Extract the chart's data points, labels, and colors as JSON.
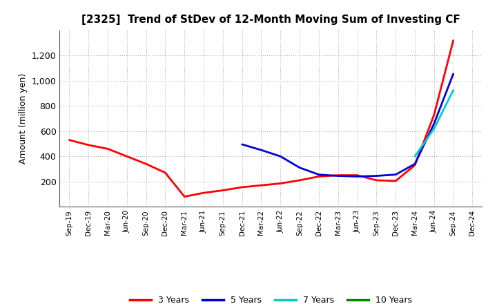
{
  "title": "[2325]  Trend of StDev of 12-Month Moving Sum of Investing CF",
  "ylabel": "Amount (million yen)",
  "background_color": "#ffffff",
  "grid_color": "#aaaaaa",
  "ylim": [
    0,
    1400
  ],
  "yticks": [
    200,
    400,
    600,
    800,
    1000,
    1200
  ],
  "series": {
    "3 Years": {
      "color": "#ff0000",
      "data": [
        [
          "Sep-19",
          530
        ],
        [
          "Dec-19",
          490
        ],
        [
          "Mar-20",
          460
        ],
        [
          "Jun-20",
          400
        ],
        [
          "Sep-20",
          340
        ],
        [
          "Dec-20",
          270
        ],
        [
          "Mar-21",
          80
        ],
        [
          "Jun-21",
          110
        ],
        [
          "Sep-21",
          130
        ],
        [
          "Dec-21",
          155
        ],
        [
          "Mar-22",
          170
        ],
        [
          "Jun-22",
          185
        ],
        [
          "Sep-22",
          210
        ],
        [
          "Dec-22",
          240
        ],
        [
          "Mar-23",
          250
        ],
        [
          "Jun-23",
          250
        ],
        [
          "Sep-23",
          210
        ],
        [
          "Dec-23",
          205
        ],
        [
          "Mar-24",
          330
        ],
        [
          "Jun-24",
          730
        ],
        [
          "Sep-24",
          1320
        ]
      ]
    },
    "5 Years": {
      "color": "#0000dd",
      "data": [
        [
          "Dec-21",
          495
        ],
        [
          "Mar-22",
          450
        ],
        [
          "Jun-22",
          400
        ],
        [
          "Sep-22",
          310
        ],
        [
          "Dec-22",
          255
        ],
        [
          "Mar-23",
          245
        ],
        [
          "Jun-23",
          240
        ],
        [
          "Sep-23",
          245
        ],
        [
          "Dec-23",
          255
        ],
        [
          "Mar-24",
          340
        ],
        [
          "Jun-24",
          660
        ],
        [
          "Sep-24",
          1055
        ]
      ]
    },
    "7 Years": {
      "color": "#00cccc",
      "data": [
        [
          "Mar-24",
          400
        ],
        [
          "Jun-24",
          620
        ],
        [
          "Sep-24",
          925
        ]
      ]
    },
    "10 Years": {
      "color": "#008800",
      "data": [
        [
          "Jun-24",
          630
        ]
      ]
    }
  },
  "x_labels": [
    "Sep-19",
    "Dec-19",
    "Mar-20",
    "Jun-20",
    "Sep-20",
    "Dec-20",
    "Mar-21",
    "Jun-21",
    "Sep-21",
    "Dec-21",
    "Mar-22",
    "Jun-22",
    "Sep-22",
    "Dec-22",
    "Mar-23",
    "Jun-23",
    "Sep-23",
    "Dec-23",
    "Mar-24",
    "Jun-24",
    "Sep-24",
    "Dec-24"
  ],
  "legend": {
    "3 Years": "#ff0000",
    "5 Years": "#0000dd",
    "7 Years": "#00cccc",
    "10 Years": "#008800"
  }
}
